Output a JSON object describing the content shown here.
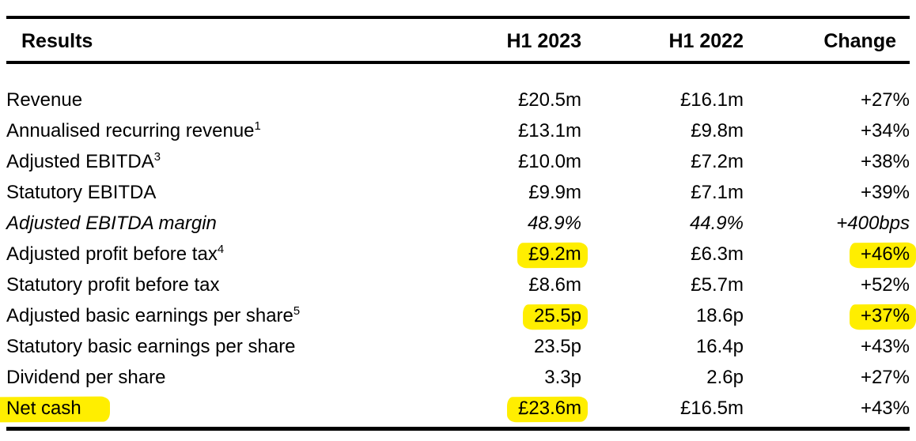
{
  "colors": {
    "highlight": "#ffee00",
    "text": "#000000",
    "rule": "#000000"
  },
  "table": {
    "header": {
      "results": "Results",
      "col_2023": "H1 2023",
      "col_2022": "H1 2022",
      "col_change": "Change"
    },
    "rows": [
      {
        "label": "Revenue",
        "sup": "",
        "italic": false,
        "v2023": "£20.5m",
        "v2022": "£16.1m",
        "change": "+27%",
        "hl": []
      },
      {
        "label": "Annualised recurring revenue",
        "sup": "1",
        "italic": false,
        "v2023": "£13.1m",
        "v2022": "£9.8m",
        "change": "+34%",
        "hl": []
      },
      {
        "label": "Adjusted EBITDA",
        "sup": "3",
        "italic": false,
        "v2023": "£10.0m",
        "v2022": "£7.2m",
        "change": "+38%",
        "hl": []
      },
      {
        "label": "Statutory EBITDA",
        "sup": "",
        "italic": false,
        "v2023": "£9.9m",
        "v2022": "£7.1m",
        "change": "+39%",
        "hl": []
      },
      {
        "label": "Adjusted EBITDA margin",
        "sup": "",
        "italic": true,
        "v2023": "48.9%",
        "v2022": "44.9%",
        "change": "+400bps",
        "hl": []
      },
      {
        "label": "Adjusted profit before tax",
        "sup": "4",
        "italic": false,
        "v2023": "£9.2m",
        "v2022": "£6.3m",
        "change": "+46%",
        "hl": [
          "v2023",
          "change"
        ]
      },
      {
        "label": "Statutory profit before tax",
        "sup": "",
        "italic": false,
        "v2023": "£8.6m",
        "v2022": "£5.7m",
        "change": "+52%",
        "hl": []
      },
      {
        "label": "Adjusted basic earnings per share",
        "sup": "5",
        "italic": false,
        "v2023": "25.5p",
        "v2022": "18.6p",
        "change": "+37%",
        "hl": [
          "v2023",
          "change"
        ]
      },
      {
        "label": "Statutory basic earnings per share",
        "sup": "",
        "italic": false,
        "v2023": "23.5p",
        "v2022": "16.4p",
        "change": "+43%",
        "hl": []
      },
      {
        "label": "Dividend per share",
        "sup": "",
        "italic": false,
        "v2023": "3.3p",
        "v2022": "2.6p",
        "change": "+27%",
        "hl": []
      },
      {
        "label": "Net cash",
        "sup": "",
        "italic": false,
        "v2023": "£23.6m",
        "v2022": "£16.5m",
        "change": "+43%",
        "hl": [
          "label",
          "v2023"
        ]
      }
    ]
  }
}
